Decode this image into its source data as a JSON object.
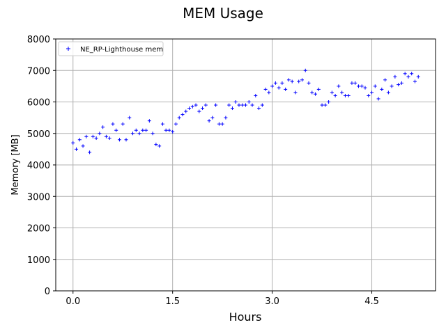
{
  "chart_data": {
    "type": "scatter",
    "title": "MEM Usage",
    "xlabel": "Hours",
    "ylabel": "Memory [MB]",
    "xlim": [
      -0.26,
      5.46
    ],
    "ylim": [
      0,
      8000
    ],
    "x_ticks": [
      0.0,
      1.5,
      3.0,
      4.5
    ],
    "x_tick_labels": [
      "0.0",
      "1.5",
      "3.0",
      "4.5"
    ],
    "y_ticks": [
      0,
      1000,
      2000,
      3000,
      4000,
      5000,
      6000,
      7000,
      8000
    ],
    "y_tick_labels": [
      "0",
      "1000",
      "2000",
      "3000",
      "4000",
      "5000",
      "6000",
      "7000",
      "8000"
    ],
    "grid": true,
    "legend_position": "top-left",
    "marker": "+",
    "color": "#0000ff",
    "series": [
      {
        "name": "NE_RP-Lighthouse mem",
        "x": [
          0.0,
          0.05,
          0.1,
          0.15,
          0.2,
          0.25,
          0.3,
          0.35,
          0.4,
          0.45,
          0.5,
          0.55,
          0.6,
          0.65,
          0.7,
          0.75,
          0.8,
          0.85,
          0.9,
          0.95,
          1.0,
          1.05,
          1.1,
          1.15,
          1.2,
          1.25,
          1.3,
          1.35,
          1.4,
          1.45,
          1.5,
          1.55,
          1.6,
          1.65,
          1.7,
          1.75,
          1.8,
          1.85,
          1.9,
          1.95,
          2.0,
          2.05,
          2.1,
          2.15,
          2.2,
          2.25,
          2.3,
          2.35,
          2.4,
          2.45,
          2.5,
          2.55,
          2.6,
          2.65,
          2.7,
          2.75,
          2.8,
          2.85,
          2.9,
          2.95,
          3.0,
          3.05,
          3.1,
          3.15,
          3.2,
          3.25,
          3.3,
          3.35,
          3.4,
          3.45,
          3.5,
          3.55,
          3.6,
          3.65,
          3.7,
          3.75,
          3.8,
          3.85,
          3.9,
          3.95,
          4.0,
          4.05,
          4.1,
          4.15,
          4.2,
          4.25,
          4.3,
          4.35,
          4.4,
          4.45,
          4.5,
          4.55,
          4.6,
          4.65,
          4.7,
          4.75,
          4.8,
          4.85,
          4.9,
          4.95,
          5.0,
          5.05,
          5.1,
          5.15,
          5.2
        ],
        "y": [
          4700,
          4500,
          4800,
          4600,
          4900,
          4400,
          4900,
          4850,
          5000,
          5200,
          4900,
          4850,
          5300,
          5100,
          4800,
          5300,
          4800,
          5500,
          5000,
          5100,
          5000,
          5100,
          5100,
          5400,
          5000,
          4650,
          4600,
          5300,
          5100,
          5100,
          5050,
          5300,
          5500,
          5600,
          5700,
          5800,
          5850,
          5900,
          5700,
          5800,
          5900,
          5400,
          5500,
          5900,
          5300,
          5300,
          5500,
          5900,
          5800,
          6000,
          5900,
          5900,
          5900,
          6000,
          5900,
          6200,
          5800,
          5900,
          6400,
          6300,
          6500,
          6600,
          6450,
          6600,
          6400,
          6700,
          6650,
          6300,
          6650,
          6700,
          7000,
          6600,
          6300,
          6250,
          6400,
          5900,
          5900,
          6000,
          6300,
          6200,
          6500,
          6300,
          6200,
          6200,
          6600,
          6600,
          6500,
          6500,
          6450,
          6200,
          6300,
          6500,
          6100,
          6400,
          6700,
          6300,
          6500,
          6800,
          6550,
          6600,
          6900,
          6800,
          6900,
          6650,
          6800
        ]
      }
    ]
  }
}
